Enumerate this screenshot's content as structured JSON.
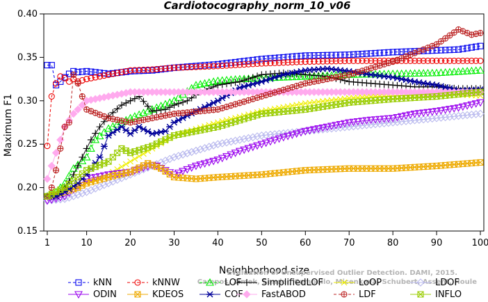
{
  "chart_data": {
    "type": "line",
    "title": "Cardiotocography_norm_10_v06",
    "xlabel": "Neighborhood size",
    "ylabel": "Maximum F1",
    "xlim": [
      1,
      100
    ],
    "ylim": [
      0.15,
      0.4
    ],
    "xticks": [
      1,
      10,
      20,
      30,
      40,
      50,
      60,
      70,
      80,
      90,
      100
    ],
    "yticks": [
      0.15,
      0.2,
      0.25,
      0.3,
      0.35,
      0.4
    ],
    "ytick_labels": [
      "0.15",
      "0.20",
      "0.25",
      "0.30",
      "0.35",
      "0.40"
    ],
    "grid": false,
    "legend_position": "bottom",
    "watermark": [
      "Evaluation of Unsupervised Outlier Detection. DAMI, 2015.",
      "Campos, Zimek, Sander, Campello, Micenkova, Schubert, Assent, Houle"
    ],
    "series": [
      {
        "name": "kNN",
        "color": "#0000ee",
        "marker": "square",
        "dashed": true,
        "x": [
          1,
          2,
          3,
          4,
          5,
          6,
          7,
          8,
          10,
          15,
          20,
          25,
          30,
          40,
          50,
          60,
          70,
          80,
          85,
          90,
          95,
          100
        ],
        "values": [
          0.341,
          0.341,
          0.318,
          0.322,
          0.327,
          0.331,
          0.334,
          0.333,
          0.334,
          0.331,
          0.334,
          0.335,
          0.338,
          0.342,
          0.348,
          0.352,
          0.353,
          0.356,
          0.357,
          0.358,
          0.359,
          0.363
        ]
      },
      {
        "name": "kNNW",
        "color": "#ee0000",
        "marker": "circle",
        "dashed": true,
        "x": [
          1,
          2,
          3,
          4,
          5,
          6,
          7,
          8,
          10,
          15,
          20,
          25,
          30,
          40,
          50,
          60,
          70,
          80,
          90,
          100
        ],
        "values": [
          0.248,
          0.305,
          0.32,
          0.328,
          0.326,
          0.322,
          0.325,
          0.322,
          0.325,
          0.33,
          0.335,
          0.336,
          0.338,
          0.34,
          0.343,
          0.345,
          0.346,
          0.346,
          0.346,
          0.346
        ]
      },
      {
        "name": "LOF",
        "color": "#00ee00",
        "marker": "triangle",
        "dashed": true,
        "x": [
          1,
          3,
          5,
          7,
          10,
          12,
          15,
          20,
          25,
          30,
          35,
          40,
          45,
          50,
          55,
          60,
          70,
          80,
          90,
          100
        ],
        "values": [
          0.19,
          0.195,
          0.205,
          0.222,
          0.235,
          0.255,
          0.268,
          0.28,
          0.29,
          0.3,
          0.318,
          0.323,
          0.325,
          0.326,
          0.327,
          0.328,
          0.33,
          0.331,
          0.332,
          0.335
        ]
      },
      {
        "name": "SimplifiedLOF",
        "color": "#000000",
        "marker": "plus",
        "dashed": false,
        "x": [
          1,
          3,
          5,
          7,
          9,
          11,
          13,
          15,
          18,
          20,
          22,
          25,
          28,
          30,
          33,
          36,
          40,
          45,
          50,
          55,
          60,
          65,
          70,
          75,
          80,
          85,
          90,
          95,
          100
        ],
        "values": [
          0.19,
          0.19,
          0.2,
          0.215,
          0.235,
          0.255,
          0.27,
          0.282,
          0.295,
          0.3,
          0.305,
          0.288,
          0.29,
          0.295,
          0.3,
          0.31,
          0.318,
          0.322,
          0.33,
          0.332,
          0.33,
          0.328,
          0.322,
          0.32,
          0.318,
          0.316,
          0.316,
          0.314,
          0.314
        ]
      },
      {
        "name": "LoOP",
        "color": "#eeee00",
        "marker": "x",
        "dashed": false,
        "x": [
          1,
          5,
          10,
          15,
          20,
          25,
          30,
          40,
          50,
          60,
          70,
          80,
          90,
          100
        ],
        "values": [
          0.19,
          0.195,
          0.205,
          0.215,
          0.23,
          0.245,
          0.26,
          0.275,
          0.288,
          0.297,
          0.303,
          0.306,
          0.308,
          0.306
        ]
      },
      {
        "name": "LDOF",
        "color": "#b8b8ee",
        "marker": "diamond",
        "dashed": false,
        "x": [
          1,
          5,
          10,
          15,
          20,
          25,
          30,
          40,
          50,
          60,
          70,
          80,
          90,
          100
        ],
        "values": [
          0.185,
          0.187,
          0.195,
          0.205,
          0.215,
          0.225,
          0.235,
          0.25,
          0.26,
          0.265,
          0.27,
          0.275,
          0.28,
          0.285
        ]
      },
      {
        "name": "ODIN",
        "color": "#9900ee",
        "marker": "triangle-down",
        "dashed": false,
        "x": [
          1,
          5,
          10,
          15,
          20,
          25,
          26,
          30,
          35,
          40,
          45,
          50,
          55,
          60,
          65,
          70,
          75,
          80,
          85,
          90,
          95,
          100
        ],
        "values": [
          0.185,
          0.19,
          0.21,
          0.215,
          0.218,
          0.226,
          0.225,
          0.215,
          0.225,
          0.232,
          0.242,
          0.25,
          0.258,
          0.265,
          0.27,
          0.275,
          0.278,
          0.28,
          0.285,
          0.288,
          0.292,
          0.298
        ]
      },
      {
        "name": "KDEOS",
        "color": "#eeaa00",
        "marker": "square-x",
        "dashed": false,
        "x": [
          1,
          5,
          8,
          10,
          15,
          20,
          24,
          27,
          30,
          35,
          40,
          50,
          60,
          70,
          80,
          90,
          100
        ],
        "values": [
          0.19,
          0.195,
          0.2,
          0.205,
          0.212,
          0.218,
          0.228,
          0.222,
          0.212,
          0.21,
          0.212,
          0.215,
          0.22,
          0.222,
          0.222,
          0.225,
          0.229
        ]
      },
      {
        "name": "COF",
        "color": "#000099",
        "marker": "asterisk",
        "dashed": false,
        "x": [
          1,
          3,
          5,
          8,
          10,
          13,
          15,
          18,
          20,
          22,
          25,
          28,
          30,
          35,
          40,
          45,
          50,
          55,
          60,
          65,
          70,
          75,
          80,
          85,
          90,
          95,
          100
        ],
        "values": [
          0.19,
          0.19,
          0.195,
          0.205,
          0.215,
          0.235,
          0.26,
          0.27,
          0.262,
          0.27,
          0.262,
          0.265,
          0.275,
          0.288,
          0.3,
          0.315,
          0.322,
          0.33,
          0.335,
          0.337,
          0.334,
          0.33,
          0.327,
          0.322,
          0.318,
          0.312,
          0.313
        ]
      },
      {
        "name": "FastABOD",
        "color": "#ffaaee",
        "marker": "diamond-filled",
        "dashed": false,
        "x": [
          1,
          3,
          5,
          7,
          10,
          15,
          20,
          25,
          30,
          40,
          50,
          60,
          70,
          80,
          90,
          100
        ],
        "values": [
          0.21,
          0.24,
          0.27,
          0.285,
          0.3,
          0.305,
          0.31,
          0.31,
          0.31,
          0.31,
          0.31,
          0.31,
          0.31,
          0.31,
          0.31,
          0.31
        ]
      },
      {
        "name": "LDF",
        "color": "#bb2222",
        "marker": "circle-plus",
        "dashed": true,
        "x": [
          1,
          2,
          3,
          4,
          5,
          6,
          7,
          8,
          10,
          15,
          20,
          25,
          30,
          40,
          50,
          60,
          70,
          80,
          85,
          90,
          95,
          98,
          100
        ],
        "values": [
          0.19,
          0.2,
          0.22,
          0.245,
          0.27,
          0.275,
          0.33,
          0.32,
          0.29,
          0.28,
          0.275,
          0.28,
          0.285,
          0.29,
          0.305,
          0.32,
          0.33,
          0.345,
          0.355,
          0.365,
          0.382,
          0.376,
          0.378
        ]
      },
      {
        "name": "INFLO",
        "color": "#99cc00",
        "marker": "square-x",
        "dashed": false,
        "x": [
          1,
          5,
          10,
          15,
          18,
          20,
          25,
          30,
          35,
          40,
          50,
          60,
          70,
          80,
          90,
          100
        ],
        "values": [
          0.19,
          0.2,
          0.22,
          0.23,
          0.245,
          0.24,
          0.248,
          0.26,
          0.265,
          0.27,
          0.285,
          0.29,
          0.298,
          0.302,
          0.305,
          0.31
        ]
      }
    ]
  }
}
